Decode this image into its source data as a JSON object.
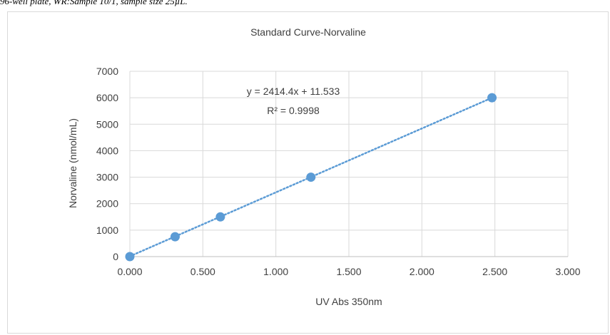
{
  "caption": "96-well plate, WR:Sample 10/1, sample size 25µL.",
  "chart_data": {
    "type": "scatter",
    "title": "Standard Curve-Norvaline",
    "xlabel": "UV Abs 350nm",
    "ylabel": "Norvaline (nmol/mL)",
    "xlim": [
      0,
      3
    ],
    "ylim": [
      0,
      7000
    ],
    "x_ticks": [
      0,
      0.5,
      1.0,
      1.5,
      2.0,
      2.5,
      3.0
    ],
    "x_tick_labels": [
      "0.000",
      "0.500",
      "1.000",
      "1.500",
      "2.000",
      "2.500",
      "3.000"
    ],
    "y_ticks": [
      0,
      1000,
      2000,
      3000,
      4000,
      5000,
      6000,
      7000
    ],
    "y_tick_labels": [
      "0",
      "1000",
      "2000",
      "3000",
      "4000",
      "5000",
      "6000",
      "7000"
    ],
    "grid": true,
    "points": [
      {
        "x": 0.0,
        "y": 0
      },
      {
        "x": 0.31,
        "y": 750
      },
      {
        "x": 0.62,
        "y": 1500
      },
      {
        "x": 1.24,
        "y": 3000
      },
      {
        "x": 2.48,
        "y": 6000
      }
    ],
    "trendline": {
      "type": "linear",
      "slope": 2414.4,
      "intercept": 11.533,
      "x_range": [
        0.0,
        2.48
      ],
      "equation": "y = 2414.4x + 11.533",
      "r2_label": "R² = 0.9998"
    },
    "colors": {
      "marker": "#5b9bd5",
      "trendline": "#5b9bd5",
      "grid": "#d9d9d9",
      "text": "#404040"
    }
  }
}
